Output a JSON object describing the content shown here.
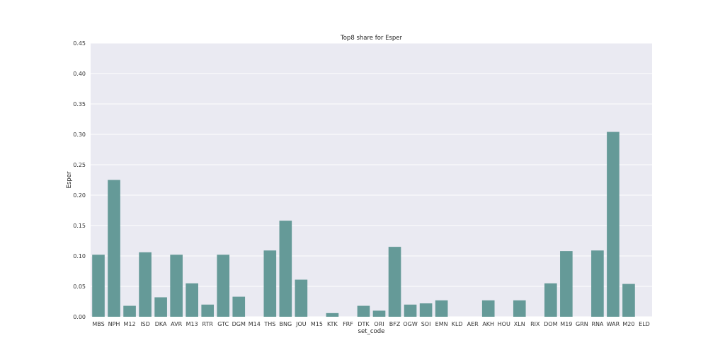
{
  "chart_data": {
    "type": "bar",
    "title": "Top8 share for Esper",
    "xlabel": "set_code",
    "ylabel": "Esper",
    "ylim": [
      0,
      0.45
    ],
    "yticks": [
      "0.00",
      "0.05",
      "0.10",
      "0.15",
      "0.20",
      "0.25",
      "0.30",
      "0.35",
      "0.40",
      "0.45"
    ],
    "categories": [
      "MBS",
      "NPH",
      "M12",
      "ISD",
      "DKA",
      "AVR",
      "M13",
      "RTR",
      "GTC",
      "DGM",
      "M14",
      "THS",
      "BNG",
      "JOU",
      "M15",
      "KTK",
      "FRF",
      "DTK",
      "ORI",
      "BFZ",
      "OGW",
      "SOI",
      "EMN",
      "KLD",
      "AER",
      "AKH",
      "HOU",
      "XLN",
      "RIX",
      "DOM",
      "M19",
      "GRN",
      "RNA",
      "WAR",
      "M20",
      "ELD"
    ],
    "values": [
      0.102,
      0.225,
      0.018,
      0.106,
      0.032,
      0.102,
      0.055,
      0.02,
      0.102,
      0.033,
      0.0,
      0.109,
      0.158,
      0.061,
      0.0,
      0.006,
      0.0,
      0.018,
      0.01,
      0.115,
      0.02,
      0.022,
      0.027,
      0.0,
      0.0,
      0.027,
      0.0,
      0.027,
      0.0,
      0.055,
      0.108,
      0.0,
      0.109,
      0.304,
      0.054,
      0.0
    ],
    "grid": true,
    "colors": {
      "bar": "#659a98",
      "background": "#eaeaf2",
      "grid": "#ffffff"
    }
  }
}
